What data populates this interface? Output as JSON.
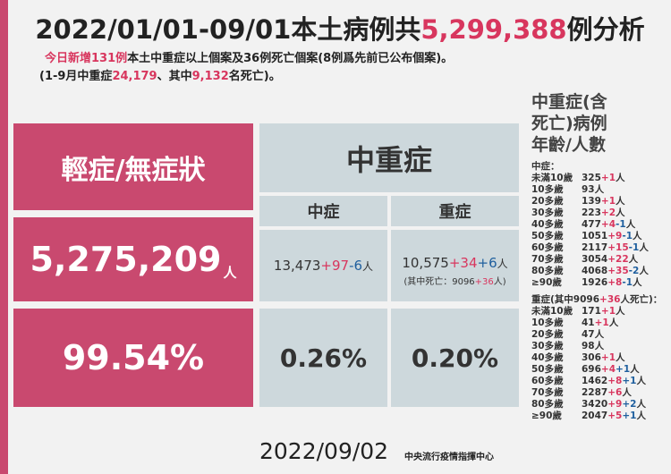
{
  "header": {
    "title": {
      "prefix": "2022/01/01-09/01本土病例共",
      "total": "5,299,388",
      "suffix": "例分析"
    },
    "line1": {
      "highlight": "今日新增131例",
      "rest": "本土中重症以上個案及36例死亡個案(8例爲先前已公布個案)。"
    },
    "line2": {
      "a": "(1-9月中重症",
      "severe": "24,179",
      "b": "、其中",
      "deaths": "9,132",
      "c": "名死亡)。"
    }
  },
  "table": {
    "mild": {
      "header": "輕症/無症狀",
      "count": "5,275,209",
      "unit": "人",
      "pct": "99.54%"
    },
    "serious": {
      "header": "中重症",
      "moderate": {
        "header": "中症",
        "base": "13,473",
        "changes": [
          "+97",
          "-6"
        ],
        "unit": "人",
        "pct": "0.26%"
      },
      "severe": {
        "header": "重症",
        "base": "10,575",
        "changes": [
          "+34",
          "+6"
        ],
        "unit": "人",
        "note": {
          "a": "(其中死亡：9096",
          "b": "+36",
          "c": "人)"
        },
        "pct": "0.20%"
      }
    }
  },
  "side": {
    "title": [
      "中重症(含",
      "死亡)病例",
      "年齡/人數"
    ],
    "moderate": {
      "label": "中症：",
      "rows": [
        {
          "age": "未滿10歲",
          "base": "325",
          "changes": [
            "+1"
          ],
          "unit": "人"
        },
        {
          "age": "10多歲",
          "base": "93",
          "changes": [],
          "unit": "人"
        },
        {
          "age": "20多歲",
          "base": "139",
          "changes": [
            "+1"
          ],
          "unit": "人"
        },
        {
          "age": "30多歲",
          "base": "223",
          "changes": [
            "+2"
          ],
          "unit": "人"
        },
        {
          "age": "40多歲",
          "base": "477",
          "changes": [
            "+4",
            "-1"
          ],
          "unit": "人"
        },
        {
          "age": "50多歲",
          "base": "1051",
          "changes": [
            "+9",
            "-1"
          ],
          "unit": "人"
        },
        {
          "age": "60多歲",
          "base": "2117",
          "changes": [
            "+15",
            "-1"
          ],
          "unit": "人"
        },
        {
          "age": "70多歲",
          "base": "3054",
          "changes": [
            "+22"
          ],
          "unit": "人"
        },
        {
          "age": "80多歲",
          "base": "4068",
          "changes": [
            "+35",
            "-2"
          ],
          "unit": "人"
        },
        {
          "age": "≥90歲",
          "base": "1926",
          "changes": [
            "+8",
            "-1"
          ],
          "unit": "人"
        }
      ]
    },
    "severe": {
      "label": {
        "a": "重症(其中9096",
        "b": "+36",
        "c": "人死亡)："
      },
      "rows": [
        {
          "age": "未滿10歲",
          "base": "171",
          "changes": [
            "+1"
          ],
          "unit": "人"
        },
        {
          "age": "10多歲",
          "base": "41",
          "changes": [
            "+1"
          ],
          "unit": "人"
        },
        {
          "age": "20多歲",
          "base": "47",
          "changes": [],
          "unit": "人"
        },
        {
          "age": "30多歲",
          "base": "98",
          "changes": [],
          "unit": "人"
        },
        {
          "age": "40多歲",
          "base": "306",
          "changes": [
            "+1"
          ],
          "unit": "人"
        },
        {
          "age": "50多歲",
          "base": "696",
          "changes": [
            "+4",
            "+1"
          ],
          "unit": "人"
        },
        {
          "age": "60多歲",
          "base": "1462",
          "changes": [
            "+8",
            "+1"
          ],
          "unit": "人"
        },
        {
          "age": "70多歲",
          "base": "2287",
          "changes": [
            "+6"
          ],
          "unit": "人"
        },
        {
          "age": "80多歲",
          "base": "3420",
          "changes": [
            "+9",
            "+2"
          ],
          "unit": "人"
        },
        {
          "age": "≥90歲",
          "base": "2047",
          "changes": [
            "+5",
            "+1"
          ],
          "unit": "人"
        }
      ]
    }
  },
  "footer": {
    "date": "2022/09/02",
    "agency": "中央流行疫情指揮中心"
  }
}
